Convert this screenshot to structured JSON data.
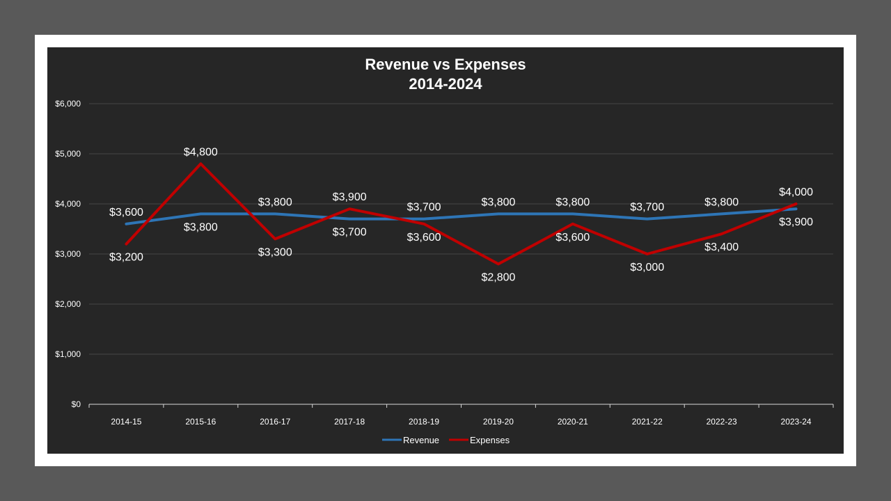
{
  "chart_data": {
    "type": "line",
    "title": "Revenue vs Expenses",
    "subtitle": "2014-2024",
    "categories": [
      "2014-15",
      "2015-16",
      "2016-17",
      "2017-18",
      "2018-19",
      "2019-20",
      "2020-21",
      "2021-22",
      "2022-23",
      "2023-24"
    ],
    "ylim": [
      0,
      6000
    ],
    "yticks": [
      0,
      1000,
      2000,
      3000,
      4000,
      5000,
      6000
    ],
    "ytick_labels": [
      "$0",
      "$1,000",
      "$2,000",
      "$3,000",
      "$4,000",
      "$5,000",
      "$6,000"
    ],
    "grid": true,
    "legend_position": "bottom",
    "series": [
      {
        "name": "Revenue",
        "color": "#2e75b6",
        "values": [
          3600,
          3800,
          3800,
          3700,
          3700,
          3800,
          3800,
          3700,
          3800,
          3900
        ],
        "labels": [
          "$3,600",
          "$3,800",
          "$3,800",
          "$3,700",
          "$3,700",
          "$3,800",
          "$3,800",
          "$3,700",
          "$3,800",
          "$3,900"
        ]
      },
      {
        "name": "Expenses",
        "color": "#c00000",
        "values": [
          3200,
          4800,
          3300,
          3900,
          3600,
          2800,
          3600,
          3000,
          3400,
          4000
        ],
        "labels": [
          "$3,200",
          "$4,800",
          "$3,300",
          "$3,900",
          "$3,600",
          "$2,800",
          "$3,600",
          "$3,000",
          "$3,400",
          "$4,000"
        ]
      }
    ]
  }
}
